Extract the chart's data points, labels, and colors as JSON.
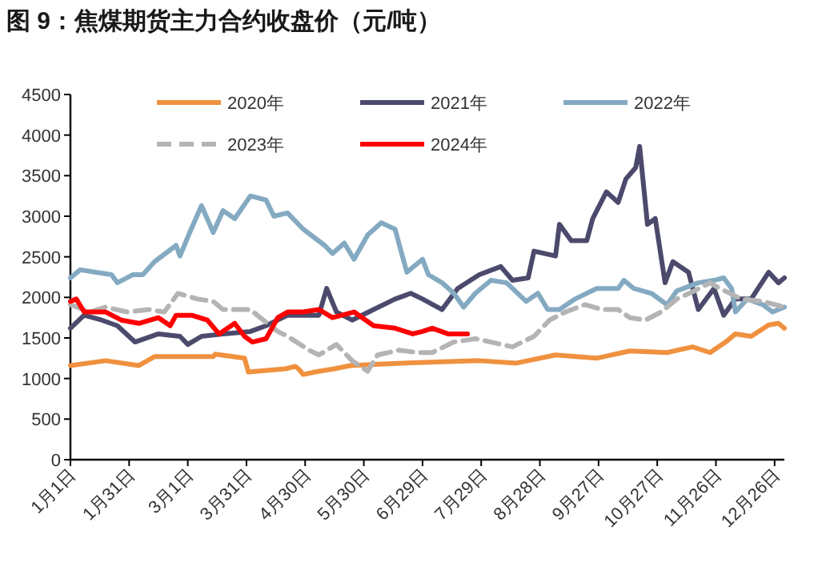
{
  "chart_data": {
    "type": "line",
    "title": "图 9：焦煤期货主力合约收盘价（元/吨）",
    "xlim": [
      "--01-01",
      "--12-31"
    ],
    "ylim": [
      0,
      4500
    ],
    "xticks": [
      {
        "value": "--01-01",
        "label": "1月1日"
      },
      {
        "value": "--01-31",
        "label": "1月31日"
      },
      {
        "value": "--03-01",
        "label": "3月1日"
      },
      {
        "value": "--03-31",
        "label": "3月31日"
      },
      {
        "value": "--04-30",
        "label": "4月30日"
      },
      {
        "value": "--05-30",
        "label": "5月30日"
      },
      {
        "value": "--06-29",
        "label": "6月29日"
      },
      {
        "value": "--07-29",
        "label": "7月29日"
      },
      {
        "value": "--08-28",
        "label": "8月28日"
      },
      {
        "value": "--09-27",
        "label": "9月27日"
      },
      {
        "value": "--10-27",
        "label": "10月27日"
      },
      {
        "value": "--11-26",
        "label": "11月26日"
      },
      {
        "value": "--12-26",
        "label": "12月26日"
      }
    ],
    "yticks": [
      0,
      500,
      1000,
      1500,
      2000,
      2500,
      3000,
      3500,
      4000,
      4500
    ],
    "legend": "top",
    "grid": false,
    "series": [
      {
        "name": "2020年",
        "color": "#f0913f",
        "line_style": "solid",
        "x": [
          "--01-01",
          "--01-19",
          "--02-05",
          "--02-13",
          "--03-01",
          "--03-14",
          "--03-15",
          "--03-30",
          "--04-01",
          "--04-20",
          "--04-25",
          "--04-27",
          "--04-29",
          "--05-05",
          "--05-15",
          "--05-23",
          "--06-09",
          "--06-19",
          "--07-28",
          "--08-16",
          "--09-05",
          "--09-26",
          "--10-13",
          "--11-01",
          "--11-14",
          "--11-23",
          "--12-01",
          "--12-06",
          "--12-14",
          "--12-23",
          "--12-28",
          "--12-31"
        ],
        "values": [
          1160,
          1220,
          1160,
          1270,
          1270,
          1270,
          1300,
          1250,
          1080,
          1120,
          1150,
          1110,
          1050,
          1080,
          1120,
          1160,
          1180,
          1190,
          1220,
          1190,
          1290,
          1250,
          1340,
          1320,
          1390,
          1320,
          1450,
          1550,
          1520,
          1660,
          1680,
          1620
        ]
      },
      {
        "name": "2021年",
        "color": "#4c4a6c",
        "line_style": "solid",
        "x": [
          "--01-01",
          "--01-08",
          "--01-17",
          "--01-25",
          "--02-03",
          "--02-15",
          "--02-26",
          "--03-01",
          "--03-08",
          "--03-19",
          "--04-02",
          "--04-10",
          "--04-21",
          "--05-07",
          "--05-11",
          "--05-16",
          "--05-24",
          "--06-04",
          "--06-15",
          "--06-23",
          "--06-29",
          "--07-09",
          "--07-17",
          "--07-28",
          "--08-08",
          "--08-14",
          "--08-22",
          "--08-25",
          "--09-05",
          "--09-07",
          "--09-13",
          "--09-21",
          "--09-24",
          "--10-01",
          "--10-07",
          "--10-11",
          "--10-16",
          "--10-18",
          "--10-22",
          "--10-26",
          "--10-31",
          "--11-04",
          "--11-12",
          "--11-17",
          "--11-25",
          "--11-30",
          "--12-06",
          "--12-14",
          "--12-23",
          "--12-28",
          "--12-31"
        ],
        "values": [
          1620,
          1780,
          1720,
          1650,
          1450,
          1550,
          1520,
          1420,
          1520,
          1550,
          1580,
          1650,
          1780,
          1780,
          2110,
          1820,
          1720,
          1850,
          1980,
          2050,
          1980,
          1850,
          2110,
          2280,
          2380,
          2210,
          2240,
          2570,
          2510,
          2900,
          2700,
          2700,
          2970,
          3300,
          3170,
          3460,
          3600,
          3860,
          2900,
          2970,
          2180,
          2440,
          2310,
          1850,
          2110,
          1780,
          1980,
          1980,
          2310,
          2180,
          2240
        ]
      },
      {
        "name": "2022年",
        "color": "#84aac2",
        "line_style": "solid",
        "x": [
          "--01-01",
          "--01-06",
          "--01-14",
          "--01-22",
          "--01-25",
          "--02-02",
          "--02-07",
          "--02-13",
          "--02-24",
          "--02-26",
          "--03-02",
          "--03-08",
          "--03-14",
          "--03-19",
          "--03-25",
          "--04-02",
          "--04-10",
          "--04-14",
          "--04-21",
          "--04-29",
          "--05-10",
          "--05-14",
          "--05-20",
          "--05-25",
          "--06-01",
          "--06-08",
          "--06-15",
          "--06-18",
          "--06-21",
          "--06-29",
          "--07-02",
          "--07-09",
          "--07-15",
          "--07-20",
          "--07-26",
          "--08-03",
          "--08-11",
          "--08-21",
          "--08-27",
          "--09-01",
          "--09-07",
          "--09-15",
          "--09-26",
          "--10-07",
          "--10-10",
          "--10-15",
          "--10-24",
          "--11-01",
          "--11-06",
          "--11-17",
          "--11-25",
          "--11-30",
          "--12-04",
          "--12-06",
          "--12-12",
          "--12-20",
          "--12-25",
          "--12-31"
        ],
        "values": [
          2240,
          2340,
          2310,
          2280,
          2180,
          2280,
          2280,
          2440,
          2640,
          2510,
          2800,
          3130,
          2800,
          3070,
          2970,
          3250,
          3200,
          3000,
          3040,
          2840,
          2640,
          2540,
          2670,
          2470,
          2770,
          2920,
          2840,
          2570,
          2310,
          2470,
          2280,
          2180,
          2050,
          1880,
          2050,
          2210,
          2180,
          1950,
          2050,
          1850,
          1850,
          1980,
          2110,
          2110,
          2210,
          2110,
          2050,
          1910,
          2080,
          2180,
          2210,
          2240,
          2110,
          1820,
          1980,
          1910,
          1820,
          1880
        ]
      },
      {
        "name": "2023年",
        "color": "#b4b4b4",
        "line_style": "dashed",
        "x": [
          "--01-01",
          "--01-11",
          "--01-19",
          "--01-30",
          "--02-10",
          "--02-18",
          "--02-25",
          "--03-06",
          "--03-14",
          "--03-19",
          "--04-02",
          "--04-07",
          "--04-16",
          "--04-21",
          "--05-02",
          "--05-07",
          "--05-16",
          "--05-24",
          "--06-01",
          "--06-06",
          "--06-17",
          "--06-26",
          "--07-04",
          "--07-15",
          "--07-26",
          "--08-03",
          "--08-14",
          "--08-25",
          "--09-02",
          "--09-10",
          "--09-20",
          "--09-29",
          "--10-07",
          "--10-13",
          "--10-21",
          "--10-29",
          "--11-06",
          "--11-15",
          "--11-23",
          "--11-28",
          "--12-09",
          "--12-20",
          "--12-31"
        ],
        "values": [
          1910,
          1820,
          1880,
          1820,
          1850,
          1820,
          2050,
          1980,
          1950,
          1850,
          1850,
          1750,
          1580,
          1520,
          1350,
          1290,
          1420,
          1220,
          1090,
          1290,
          1350,
          1320,
          1320,
          1450,
          1490,
          1450,
          1390,
          1520,
          1720,
          1820,
          1910,
          1850,
          1850,
          1750,
          1720,
          1820,
          1980,
          2080,
          2180,
          2110,
          1980,
          1950,
          1880
        ]
      },
      {
        "name": "2024年",
        "color": "#fe0000",
        "line_style": "solid",
        "x": [
          "--01-01",
          "--01-04",
          "--01-08",
          "--01-19",
          "--01-27",
          "--02-05",
          "--02-15",
          "--02-21",
          "--02-24",
          "--03-03",
          "--03-11",
          "--03-17",
          "--03-25",
          "--03-30",
          "--04-03",
          "--04-10",
          "--04-16",
          "--04-21",
          "--04-29",
          "--05-07",
          "--05-14",
          "--05-25",
          "--06-04",
          "--06-15",
          "--06-24",
          "--06-29",
          "--07-04",
          "--07-12",
          "--07-22"
        ],
        "values": [
          1950,
          1980,
          1820,
          1820,
          1720,
          1680,
          1750,
          1650,
          1780,
          1780,
          1720,
          1550,
          1680,
          1520,
          1450,
          1490,
          1750,
          1820,
          1820,
          1850,
          1750,
          1820,
          1650,
          1620,
          1550,
          1580,
          1620,
          1550,
          1550
        ]
      }
    ]
  }
}
